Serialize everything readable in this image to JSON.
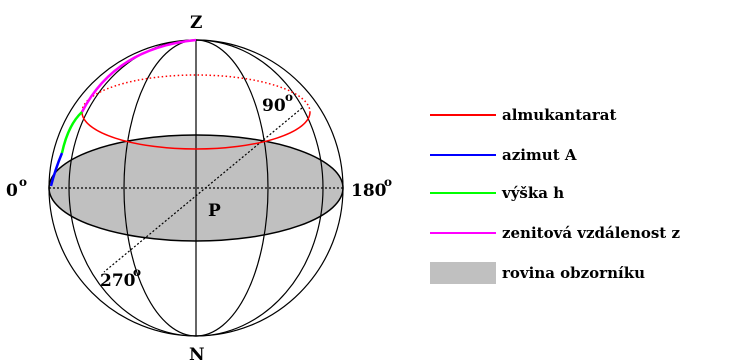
{
  "diagram": {
    "labels": {
      "zenith": "Z",
      "nadir": "N",
      "center": "P",
      "deg_0": "0",
      "deg_90": "90",
      "deg_180": "180",
      "deg_270": "270",
      "degree_mark": "o"
    },
    "colors": {
      "almukantarat": "#ff0000",
      "azimut": "#0000ff",
      "vyska": "#00ff00",
      "zenitova": "#ff00ff",
      "rovina": "#c0c0c0",
      "lines": "#000000"
    }
  },
  "legend": {
    "items": [
      {
        "key": "almukantarat",
        "label": "almukantarat",
        "type": "line",
        "color": "#ff0000"
      },
      {
        "key": "azimut",
        "label": "azimut A",
        "type": "line",
        "color": "#0000ff"
      },
      {
        "key": "vyska",
        "label": "výška h",
        "type": "line",
        "color": "#00ff00"
      },
      {
        "key": "zenitova",
        "label": "zenitová vzdálenost z",
        "type": "line",
        "color": "#ff00ff"
      },
      {
        "key": "rovina",
        "label": "rovina obzorníku",
        "type": "patch",
        "color": "#c0c0c0"
      }
    ]
  }
}
